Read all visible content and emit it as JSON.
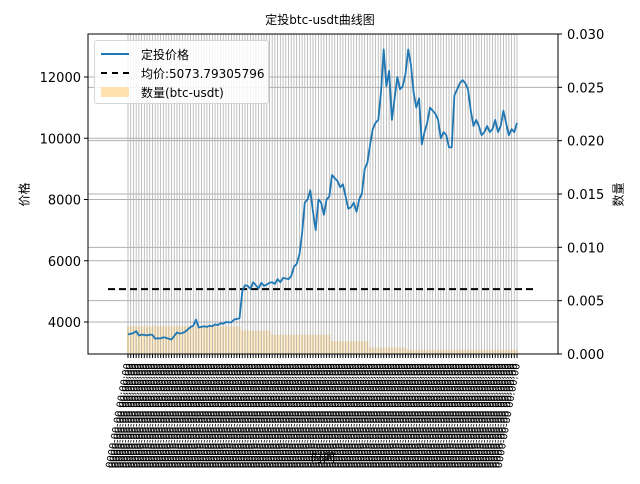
{
  "chart_data": {
    "type": "line+bar",
    "title": "定投btc-usdt曲线图",
    "xlabel": "时间",
    "ylabel": "价格",
    "ylabel_right": "数量",
    "ylim": [
      2900,
      13400
    ],
    "ylim_right": [
      0.0,
      0.03
    ],
    "yticks": [
      4000,
      6000,
      8000,
      10000,
      12000
    ],
    "yticks_right": [
      "0.000",
      "0.005",
      "0.010",
      "0.015",
      "0.020",
      "0.025",
      "0.030"
    ],
    "grid": true,
    "legend_position": "upper left",
    "legend": [
      "定投价格",
      "均价:5073.79305796",
      "数量(btc-usdt)"
    ],
    "x_tick_labels": "illegible (dense overlapping date labels)",
    "average_price": 5073.79305796,
    "series": [
      {
        "name": "定投价格",
        "kind": "line",
        "color": "#1f77b4",
        "values": [
          3600,
          3610,
          3640,
          3700,
          3560,
          3590,
          3580,
          3560,
          3590,
          3580,
          3450,
          3470,
          3460,
          3500,
          3480,
          3450,
          3430,
          3540,
          3660,
          3620,
          3640,
          3680,
          3760,
          3840,
          3880,
          4080,
          3820,
          3840,
          3860,
          3840,
          3880,
          3860,
          3920,
          3900,
          3960,
          3940,
          4000,
          3990,
          3990,
          4080,
          4100,
          4120,
          5000,
          5200,
          5180,
          5080,
          5300,
          5200,
          5100,
          5280,
          5180,
          5220,
          5280,
          5300,
          5240,
          5400,
          5300,
          5440,
          5420,
          5400,
          5500,
          5800,
          5900,
          6200,
          6900,
          7900,
          8000,
          8300,
          7600,
          7000,
          8000,
          7900,
          7500,
          8000,
          8100,
          8800,
          8700,
          8600,
          8400,
          8500,
          8100,
          7700,
          7750,
          7900,
          7600,
          8000,
          8200,
          9000,
          9200,
          9800,
          10300,
          10500,
          10600,
          11500,
          12900,
          11700,
          12200,
          10600,
          11300,
          12000,
          11600,
          11700,
          12100,
          12900,
          12400,
          11500,
          11000,
          11300,
          9800,
          10200,
          10500,
          11000,
          10900,
          10800,
          10600,
          10000,
          10200,
          10100,
          9700,
          9700,
          11400,
          11600,
          11800,
          11900,
          11800,
          11600,
          10900,
          10400,
          10600,
          10400,
          10100,
          10200,
          10400,
          10200,
          10300,
          10600,
          10200,
          10400,
          10900,
          10500,
          10100,
          10300,
          10200,
          10500
        ],
        "note": "approximate, read from pixels"
      },
      {
        "name": "均价:5073.79305796",
        "kind": "hline",
        "color": "#000000",
        "value": 5073.79305796
      },
      {
        "name": "数量(btc-usdt)",
        "kind": "bar",
        "color": "#ffdb99",
        "segments": [
          {
            "from_pct": 0.0,
            "to_pct": 0.04,
            "value": 0.0026
          },
          {
            "from_pct": 0.04,
            "to_pct": 0.29,
            "value": 0.0026
          },
          {
            "from_pct": 0.29,
            "to_pct": 0.37,
            "value": 0.0022
          },
          {
            "from_pct": 0.37,
            "to_pct": 0.52,
            "value": 0.0018
          },
          {
            "from_pct": 0.52,
            "to_pct": 0.62,
            "value": 0.0012
          },
          {
            "from_pct": 0.62,
            "to_pct": 0.72,
            "value": 0.0006
          },
          {
            "from_pct": 0.72,
            "to_pct": 1.0,
            "value": 0.0004
          }
        ],
        "note": "approximate volume per period (secondary axis)"
      }
    ]
  },
  "figure": {
    "title": "定投btc-usdt曲线图",
    "xlabel": "时间",
    "ylabel_left": "价格",
    "ylabel_right": "数量",
    "legend": {
      "line_label": "定投价格",
      "avg_label": "均价:5073.79305796",
      "bar_label": "数量(btc-usdt)"
    },
    "colors": {
      "price_line": "#1f77b4",
      "avg_line": "#000000",
      "bars": "#ffdb99",
      "grid": "#b0b0b0"
    }
  }
}
